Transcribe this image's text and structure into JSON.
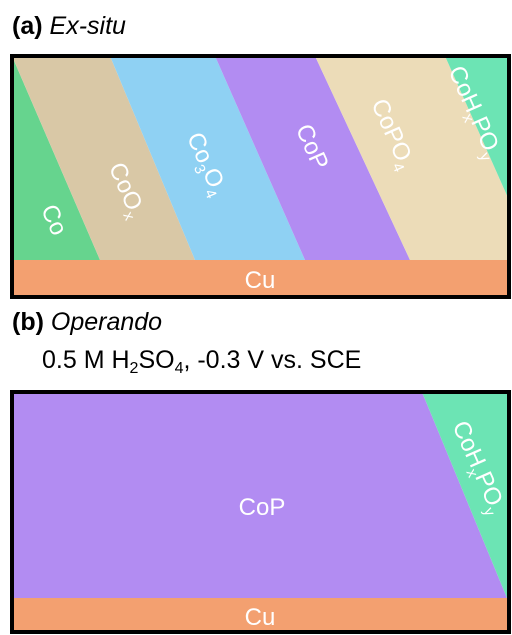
{
  "panel_a": {
    "letter": "(a)",
    "title": "Ex-situ",
    "layers": [
      {
        "name": "Co",
        "color": "#66d48e"
      },
      {
        "name": "CoO",
        "sub": "x",
        "color": "#d9c8a6"
      },
      {
        "name": "Co",
        "mid": "3",
        "tail": "O",
        "sub": "4",
        "color": "#8fd1f3"
      },
      {
        "name": "CoP",
        "color": "#b28cf2"
      },
      {
        "name": "CoPO",
        "sub": "4",
        "color": "#ecdcb8"
      },
      {
        "name": "CoH",
        "mid": "x",
        "tail": "PO",
        "sub": "y",
        "color": "#6ce4b4"
      }
    ],
    "substrate": {
      "name": "Cu",
      "color": "#f3a070"
    }
  },
  "panel_b": {
    "letter": "(b)",
    "title": "Operando",
    "conditions": {
      "pre": "0.5 M H",
      "sub1": "2",
      "mid": "SO",
      "sub2": "4",
      "post": ", -0.3 V vs. SCE"
    },
    "layers": [
      {
        "name": "CoP",
        "color": "#b28cf2"
      },
      {
        "name": "CoH",
        "mid": "x",
        "tail": "PO",
        "sub": "y",
        "color": "#6ce4b4"
      }
    ],
    "substrate": {
      "name": "Cu",
      "color": "#f3a070"
    }
  }
}
